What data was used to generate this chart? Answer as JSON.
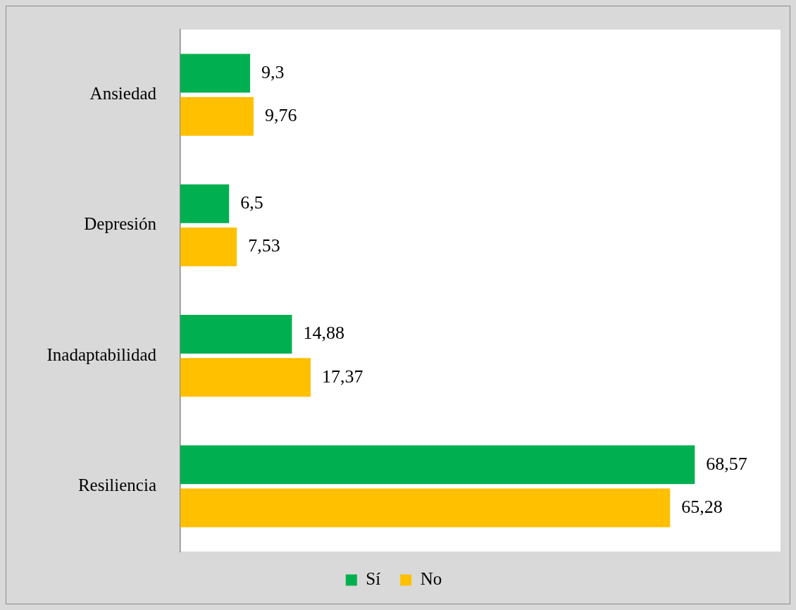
{
  "chart_data": {
    "type": "bar",
    "orientation": "horizontal",
    "categories": [
      "Ansiedad",
      "Depresión",
      "Inadaptabilidad",
      "Resiliencia"
    ],
    "series": [
      {
        "name": "Sí",
        "color": "#00b050",
        "values": [
          9.3,
          6.5,
          14.88,
          68.57
        ],
        "value_labels": [
          "9,3",
          "6,5",
          "14,88",
          "68,57"
        ]
      },
      {
        "name": "No",
        "color": "#ffc000",
        "values": [
          9.76,
          7.53,
          17.37,
          65.28
        ],
        "value_labels": [
          "9,76",
          "7,53",
          "17,37",
          "65,28"
        ]
      }
    ],
    "xlim": [
      0,
      80
    ],
    "tick_labels": "y",
    "legend": "bottom"
  }
}
